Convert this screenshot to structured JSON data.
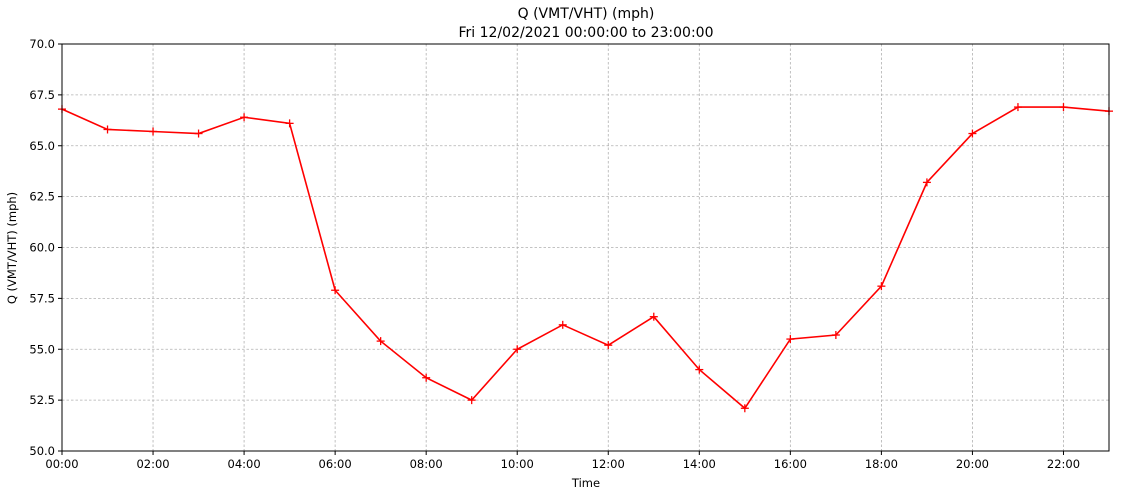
{
  "chart_data": {
    "type": "line",
    "title": "Q (VMT/VHT) (mph)",
    "subtitle": "Fri 12/02/2021 00:00:00 to 23:00:00",
    "xlabel": "Time",
    "ylabel": "Q (VMT/VHT) (mph)",
    "x": [
      "00:00",
      "01:00",
      "02:00",
      "03:00",
      "04:00",
      "05:00",
      "06:00",
      "07:00",
      "08:00",
      "09:00",
      "10:00",
      "11:00",
      "12:00",
      "13:00",
      "14:00",
      "15:00",
      "16:00",
      "17:00",
      "18:00",
      "19:00",
      "20:00",
      "21:00",
      "22:00",
      "23:00"
    ],
    "x_ticks": [
      "00:00",
      "02:00",
      "04:00",
      "06:00",
      "08:00",
      "10:00",
      "12:00",
      "14:00",
      "16:00",
      "18:00",
      "20:00",
      "22:00"
    ],
    "y_ticks": [
      "50.0",
      "52.5",
      "55.0",
      "57.5",
      "60.0",
      "62.5",
      "65.0",
      "67.5",
      "70.0"
    ],
    "ylim": [
      50,
      70
    ],
    "grid": true,
    "series": [
      {
        "color": "#ff0000",
        "marker": "plus",
        "values": [
          66.8,
          65.8,
          65.7,
          65.6,
          66.4,
          66.1,
          57.9,
          55.4,
          53.6,
          52.5,
          55.0,
          56.2,
          55.2,
          56.6,
          54.0,
          52.1,
          55.5,
          55.7,
          58.1,
          63.2,
          65.6,
          66.9,
          66.9,
          66.7
        ]
      }
    ]
  }
}
